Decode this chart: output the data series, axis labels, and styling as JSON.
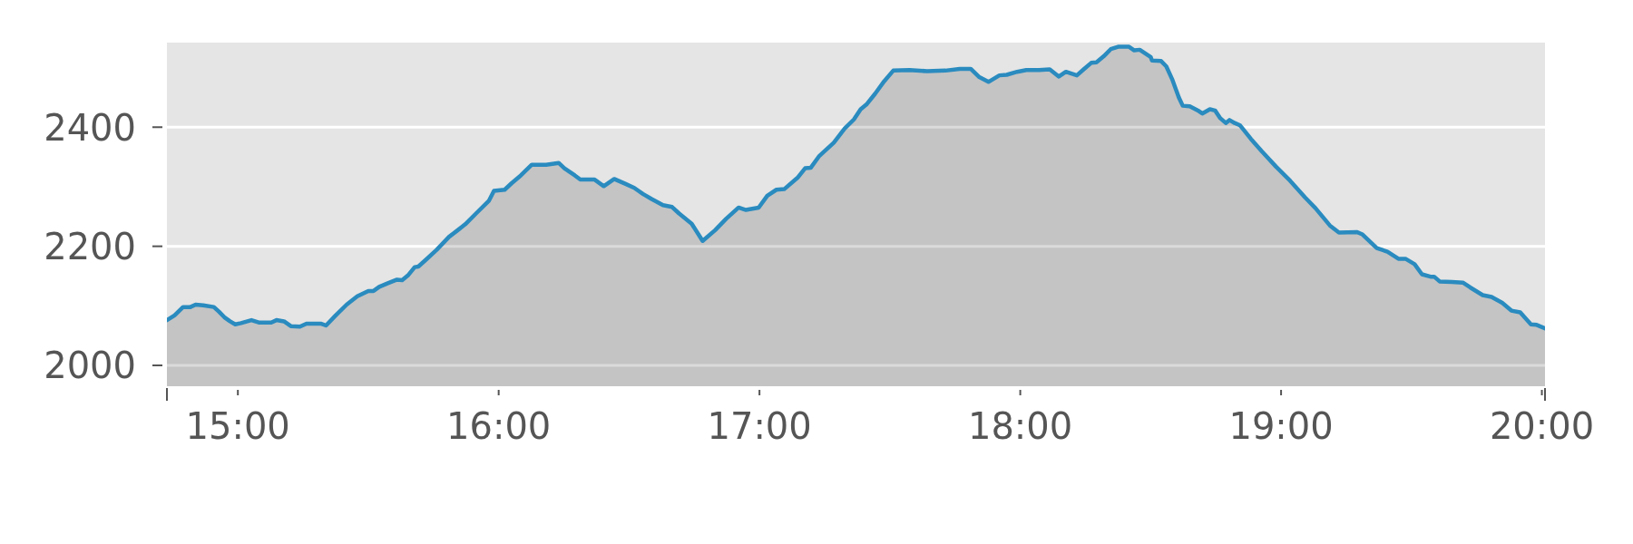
{
  "chart_data": {
    "type": "area",
    "x": [
      14.728,
      14.757,
      14.79,
      14.818,
      14.838,
      14.867,
      14.908,
      14.928,
      14.948,
      14.97,
      14.99,
      15.012,
      15.052,
      15.08,
      15.128,
      15.148,
      15.177,
      15.203,
      15.238,
      15.263,
      15.32,
      15.338,
      15.375,
      15.417,
      15.458,
      15.5,
      15.52,
      15.542,
      15.575,
      15.61,
      15.63,
      15.652,
      15.678,
      15.692,
      15.72,
      15.762,
      15.81,
      15.843,
      15.872,
      15.913,
      15.962,
      15.982,
      16.023,
      16.05,
      16.085,
      16.127,
      16.147,
      16.182,
      16.23,
      16.252,
      16.292,
      16.313,
      16.368,
      16.403,
      16.443,
      16.485,
      16.52,
      16.553,
      16.588,
      16.63,
      16.665,
      16.692,
      16.74,
      16.782,
      16.83,
      16.872,
      16.92,
      16.948,
      16.997,
      17.03,
      17.065,
      17.095,
      17.148,
      17.175,
      17.197,
      17.23,
      17.285,
      17.327,
      17.362,
      17.388,
      17.41,
      17.443,
      17.478,
      17.513,
      17.575,
      17.643,
      17.713,
      17.768,
      17.81,
      17.843,
      17.878,
      17.92,
      17.948,
      17.988,
      18.023,
      18.072,
      18.113,
      18.148,
      18.175,
      18.217,
      18.243,
      18.272,
      18.292,
      18.32,
      18.347,
      18.375,
      18.417,
      18.437,
      18.458,
      18.5,
      18.505,
      18.54,
      18.56,
      18.582,
      18.608,
      18.623,
      18.65,
      18.685,
      18.698,
      18.727,
      18.747,
      18.767,
      18.788,
      18.802,
      18.822,
      18.843,
      18.885,
      18.925,
      18.98,
      19.035,
      19.092,
      19.132,
      19.187,
      19.222,
      19.29,
      19.312,
      19.367,
      19.408,
      19.45,
      19.477,
      19.512,
      19.54,
      19.573,
      19.587,
      19.608,
      19.655,
      19.697,
      19.725,
      19.773,
      19.807,
      19.848,
      19.883,
      19.917,
      19.958,
      19.98,
      20.012
    ],
    "series": [
      {
        "color": "#2a8bbf",
        "values": [
          2076,
          2084,
          2098,
          2098,
          2102,
          2101,
          2098,
          2090,
          2081,
          2074,
          2069,
          2071,
          2076,
          2072,
          2072,
          2076,
          2074,
          2066,
          2065,
          2070,
          2070,
          2067,
          2084,
          2102,
          2116,
          2125,
          2125,
          2132,
          2138,
          2144,
          2143,
          2151,
          2165,
          2166,
          2177,
          2194,
          2216,
          2227,
          2237,
          2255,
          2276,
          2293,
          2295,
          2306,
          2319,
          2337,
          2337,
          2337,
          2340,
          2331,
          2319,
          2312,
          2312,
          2301,
          2313,
          2305,
          2298,
          2288,
          2279,
          2269,
          2266,
          2255,
          2238,
          2209,
          2227,
          2246,
          2265,
          2261,
          2265,
          2285,
          2295,
          2296,
          2316,
          2331,
          2332,
          2352,
          2374,
          2398,
          2413,
          2430,
          2438,
          2456,
          2477,
          2495,
          2496,
          2494,
          2495,
          2498,
          2498,
          2484,
          2476,
          2487,
          2488,
          2493,
          2496,
          2496,
          2497,
          2485,
          2493,
          2487,
          2497,
          2508,
          2509,
          2519,
          2531,
          2535,
          2535,
          2529,
          2530,
          2518,
          2512,
          2511,
          2502,
          2481,
          2450,
          2436,
          2435,
          2427,
          2423,
          2430,
          2428,
          2415,
          2407,
          2412,
          2407,
          2403,
          2380,
          2360,
          2334,
          2310,
          2282,
          2264,
          2235,
          2223,
          2224,
          2220,
          2197,
          2191,
          2179,
          2179,
          2170,
          2153,
          2149,
          2149,
          2141,
          2140,
          2139,
          2131,
          2118,
          2115,
          2105,
          2092,
          2089,
          2069,
          2068,
          2062
        ]
      }
    ],
    "xlim": [
      14.728,
      20.012
    ],
    "ylim": [
      1965,
      2542
    ],
    "xticks": [
      {
        "value": 14.728,
        "label": null
      },
      {
        "value": 15,
        "label": "15:00"
      },
      {
        "value": 16,
        "label": "16:00"
      },
      {
        "value": 17,
        "label": "17:00"
      },
      {
        "value": 18,
        "label": "18:00"
      },
      {
        "value": 19,
        "label": "19:00"
      },
      {
        "value": 20,
        "label": "20:00"
      },
      {
        "value": 20.012,
        "label": null
      }
    ],
    "yticks": [
      2000,
      2200,
      2400
    ],
    "grid": "y"
  }
}
